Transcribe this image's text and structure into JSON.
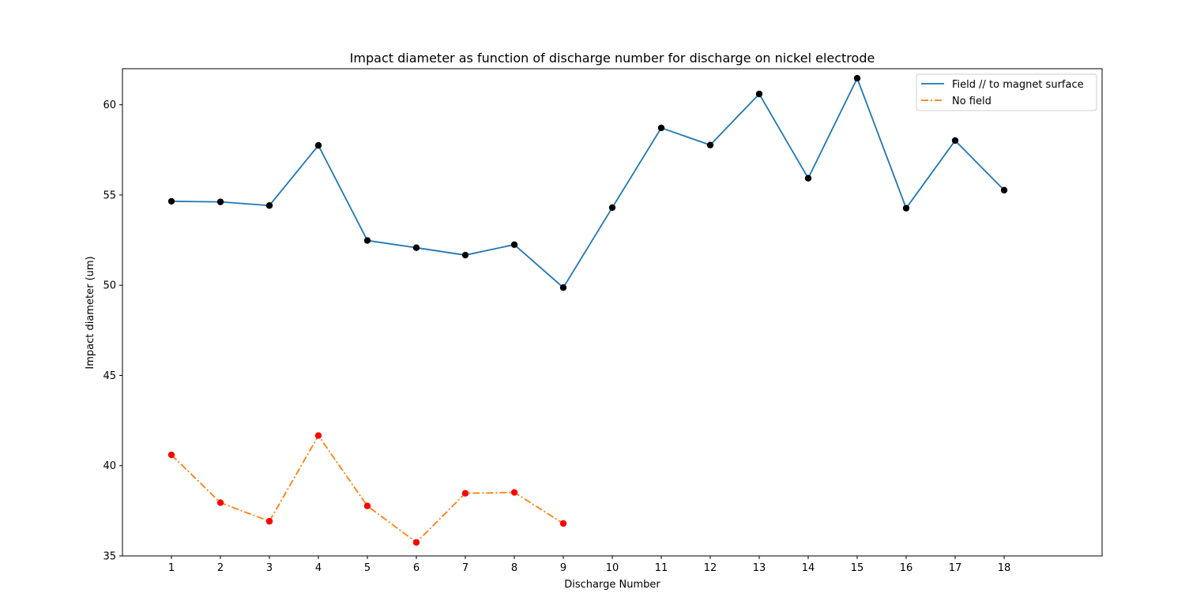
{
  "chart_data": {
    "type": "line",
    "title": "Impact diameter as function of discharge number for discharge on nickel electrode",
    "xlabel": "Discharge Number",
    "ylabel": "Impact diameter (um)",
    "xlim": [
      0,
      20
    ],
    "ylim": [
      35,
      62
    ],
    "x_ticks": [
      1,
      2,
      3,
      4,
      5,
      6,
      7,
      8,
      9,
      10,
      11,
      12,
      13,
      14,
      15,
      16,
      17,
      18
    ],
    "y_ticks": [
      35,
      40,
      45,
      50,
      55,
      60
    ],
    "grid": false,
    "legend_position": "top-right",
    "series": [
      {
        "name": "Field // to magnet surface",
        "color": "#1f77b4",
        "marker_color": "#000000",
        "line_style": "solid",
        "x": [
          1,
          2,
          3,
          4,
          5,
          6,
          7,
          8,
          9,
          10,
          11,
          12,
          13,
          14,
          15,
          16,
          17,
          18
        ],
        "values": [
          54.65,
          54.62,
          54.42,
          57.75,
          52.48,
          52.08,
          51.67,
          52.25,
          49.87,
          54.3,
          58.72,
          57.77,
          60.6,
          55.93,
          61.47,
          54.27,
          58.02,
          55.27
        ]
      },
      {
        "name": "No field",
        "color": "#ff7f0e",
        "marker_color": "#ff0000",
        "line_style": "dashdot",
        "x": [
          1,
          2,
          3,
          4,
          5,
          6,
          7,
          8,
          9
        ],
        "values": [
          40.6,
          37.95,
          36.92,
          41.67,
          37.77,
          35.75,
          38.47,
          38.52,
          36.8
        ]
      }
    ]
  }
}
